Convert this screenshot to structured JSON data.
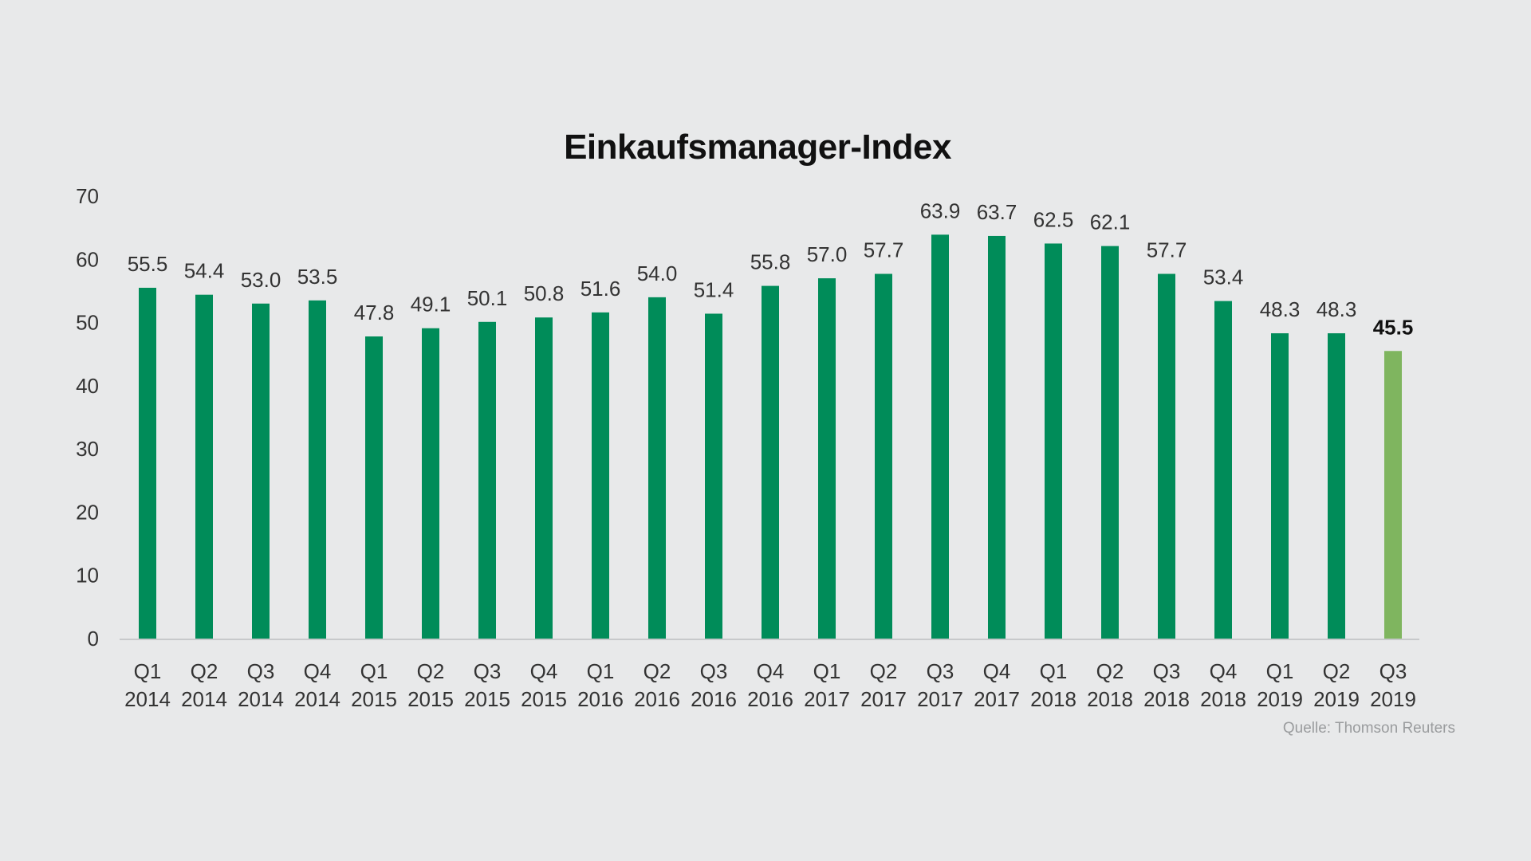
{
  "chart_data": {
    "type": "bar",
    "title": "Einkaufsmanager-Index",
    "source": "Quelle: Thomson Reuters",
    "categories": [
      [
        "Q1",
        "2014"
      ],
      [
        "Q2",
        "2014"
      ],
      [
        "Q3",
        "2014"
      ],
      [
        "Q4",
        "2014"
      ],
      [
        "Q1",
        "2015"
      ],
      [
        "Q2",
        "2015"
      ],
      [
        "Q3",
        "2015"
      ],
      [
        "Q4",
        "2015"
      ],
      [
        "Q1",
        "2016"
      ],
      [
        "Q2",
        "2016"
      ],
      [
        "Q3",
        "2016"
      ],
      [
        "Q4",
        "2016"
      ],
      [
        "Q1",
        "2017"
      ],
      [
        "Q2",
        "2017"
      ],
      [
        "Q3",
        "2017"
      ],
      [
        "Q4",
        "2017"
      ],
      [
        "Q1",
        "2018"
      ],
      [
        "Q2",
        "2018"
      ],
      [
        "Q3",
        "2018"
      ],
      [
        "Q4",
        "2018"
      ],
      [
        "Q1",
        "2019"
      ],
      [
        "Q2",
        "2019"
      ],
      [
        "Q3",
        "2019"
      ]
    ],
    "values": [
      55.5,
      54.4,
      53.0,
      53.5,
      47.8,
      49.1,
      50.1,
      50.8,
      51.6,
      54.0,
      51.4,
      55.8,
      57.0,
      57.7,
      63.9,
      63.7,
      62.5,
      62.1,
      57.7,
      53.4,
      48.3,
      48.3,
      45.5
    ],
    "value_labels": [
      "55.5",
      "54.4",
      "53.0",
      "53.5",
      "47.8",
      "49.1",
      "50.1",
      "50.8",
      "51.6",
      "54.0",
      "51.4",
      "55.8",
      "57.0",
      "57.7",
      "63.9",
      "63.7",
      "62.5",
      "62.1",
      "57.7",
      "53.4",
      "48.3",
      "48.3",
      "45.5"
    ],
    "highlight_index": 22,
    "ylim": [
      0,
      70
    ],
    "yticks": [
      0,
      10,
      20,
      30,
      40,
      50,
      60,
      70
    ],
    "grid": false,
    "colors": {
      "bar": "#008c59",
      "highlight_bar": "#7fb55f",
      "axis": "#c7c9cb",
      "background": "#e8e9ea"
    }
  }
}
